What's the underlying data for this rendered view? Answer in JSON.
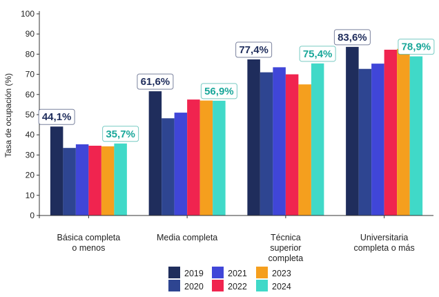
{
  "chart_data": {
    "type": "bar",
    "ylabel": "Tasa de ocupación (%)",
    "ylim": [
      0,
      100
    ],
    "yticks": [
      "0",
      "10",
      "20",
      "30",
      "40",
      "50",
      "60",
      "70",
      "80",
      "90",
      "100"
    ],
    "grid": false,
    "legend_position": "bottom",
    "categories": [
      [
        "Básica completa",
        "o menos"
      ],
      [
        "Media completa"
      ],
      [
        "Técnica",
        "superior",
        "completa"
      ],
      [
        "Universitaria",
        "completa o más"
      ]
    ],
    "series": [
      {
        "name": "2019",
        "color": "#1f2d5c",
        "values": [
          44.1,
          61.6,
          77.4,
          83.6
        ]
      },
      {
        "name": "2020",
        "color": "#2e4591",
        "values": [
          33.5,
          48.2,
          71.0,
          72.7
        ]
      },
      {
        "name": "2021",
        "color": "#4046d8",
        "values": [
          35.3,
          51.0,
          73.5,
          75.3
        ]
      },
      {
        "name": "2022",
        "color": "#f0244f",
        "values": [
          34.6,
          57.5,
          70.0,
          82.2
        ]
      },
      {
        "name": "2023",
        "color": "#f59f1e",
        "values": [
          34.3,
          57.0,
          65.0,
          82.6
        ]
      },
      {
        "name": "2024",
        "color": "#40d9c8",
        "values": [
          35.7,
          56.9,
          75.4,
          78.9
        ]
      }
    ],
    "annotations": [
      {
        "category_index": 0,
        "series_index": 0,
        "text": "44,1%",
        "color": "#1f2d5c"
      },
      {
        "category_index": 0,
        "series_index": 5,
        "text": "35,7%",
        "color": "#1aa79a"
      },
      {
        "category_index": 1,
        "series_index": 0,
        "text": "61,6%",
        "color": "#1f2d5c"
      },
      {
        "category_index": 1,
        "series_index": 5,
        "text": "56,9%",
        "color": "#1aa79a"
      },
      {
        "category_index": 2,
        "series_index": 0,
        "text": "77,4%",
        "color": "#1f2d5c"
      },
      {
        "category_index": 2,
        "series_index": 5,
        "text": "75,4%",
        "color": "#1aa79a"
      },
      {
        "category_index": 3,
        "series_index": 0,
        "text": "83,6%",
        "color": "#1f2d5c"
      },
      {
        "category_index": 3,
        "series_index": 5,
        "text": "78,9%",
        "color": "#1aa79a"
      }
    ]
  }
}
